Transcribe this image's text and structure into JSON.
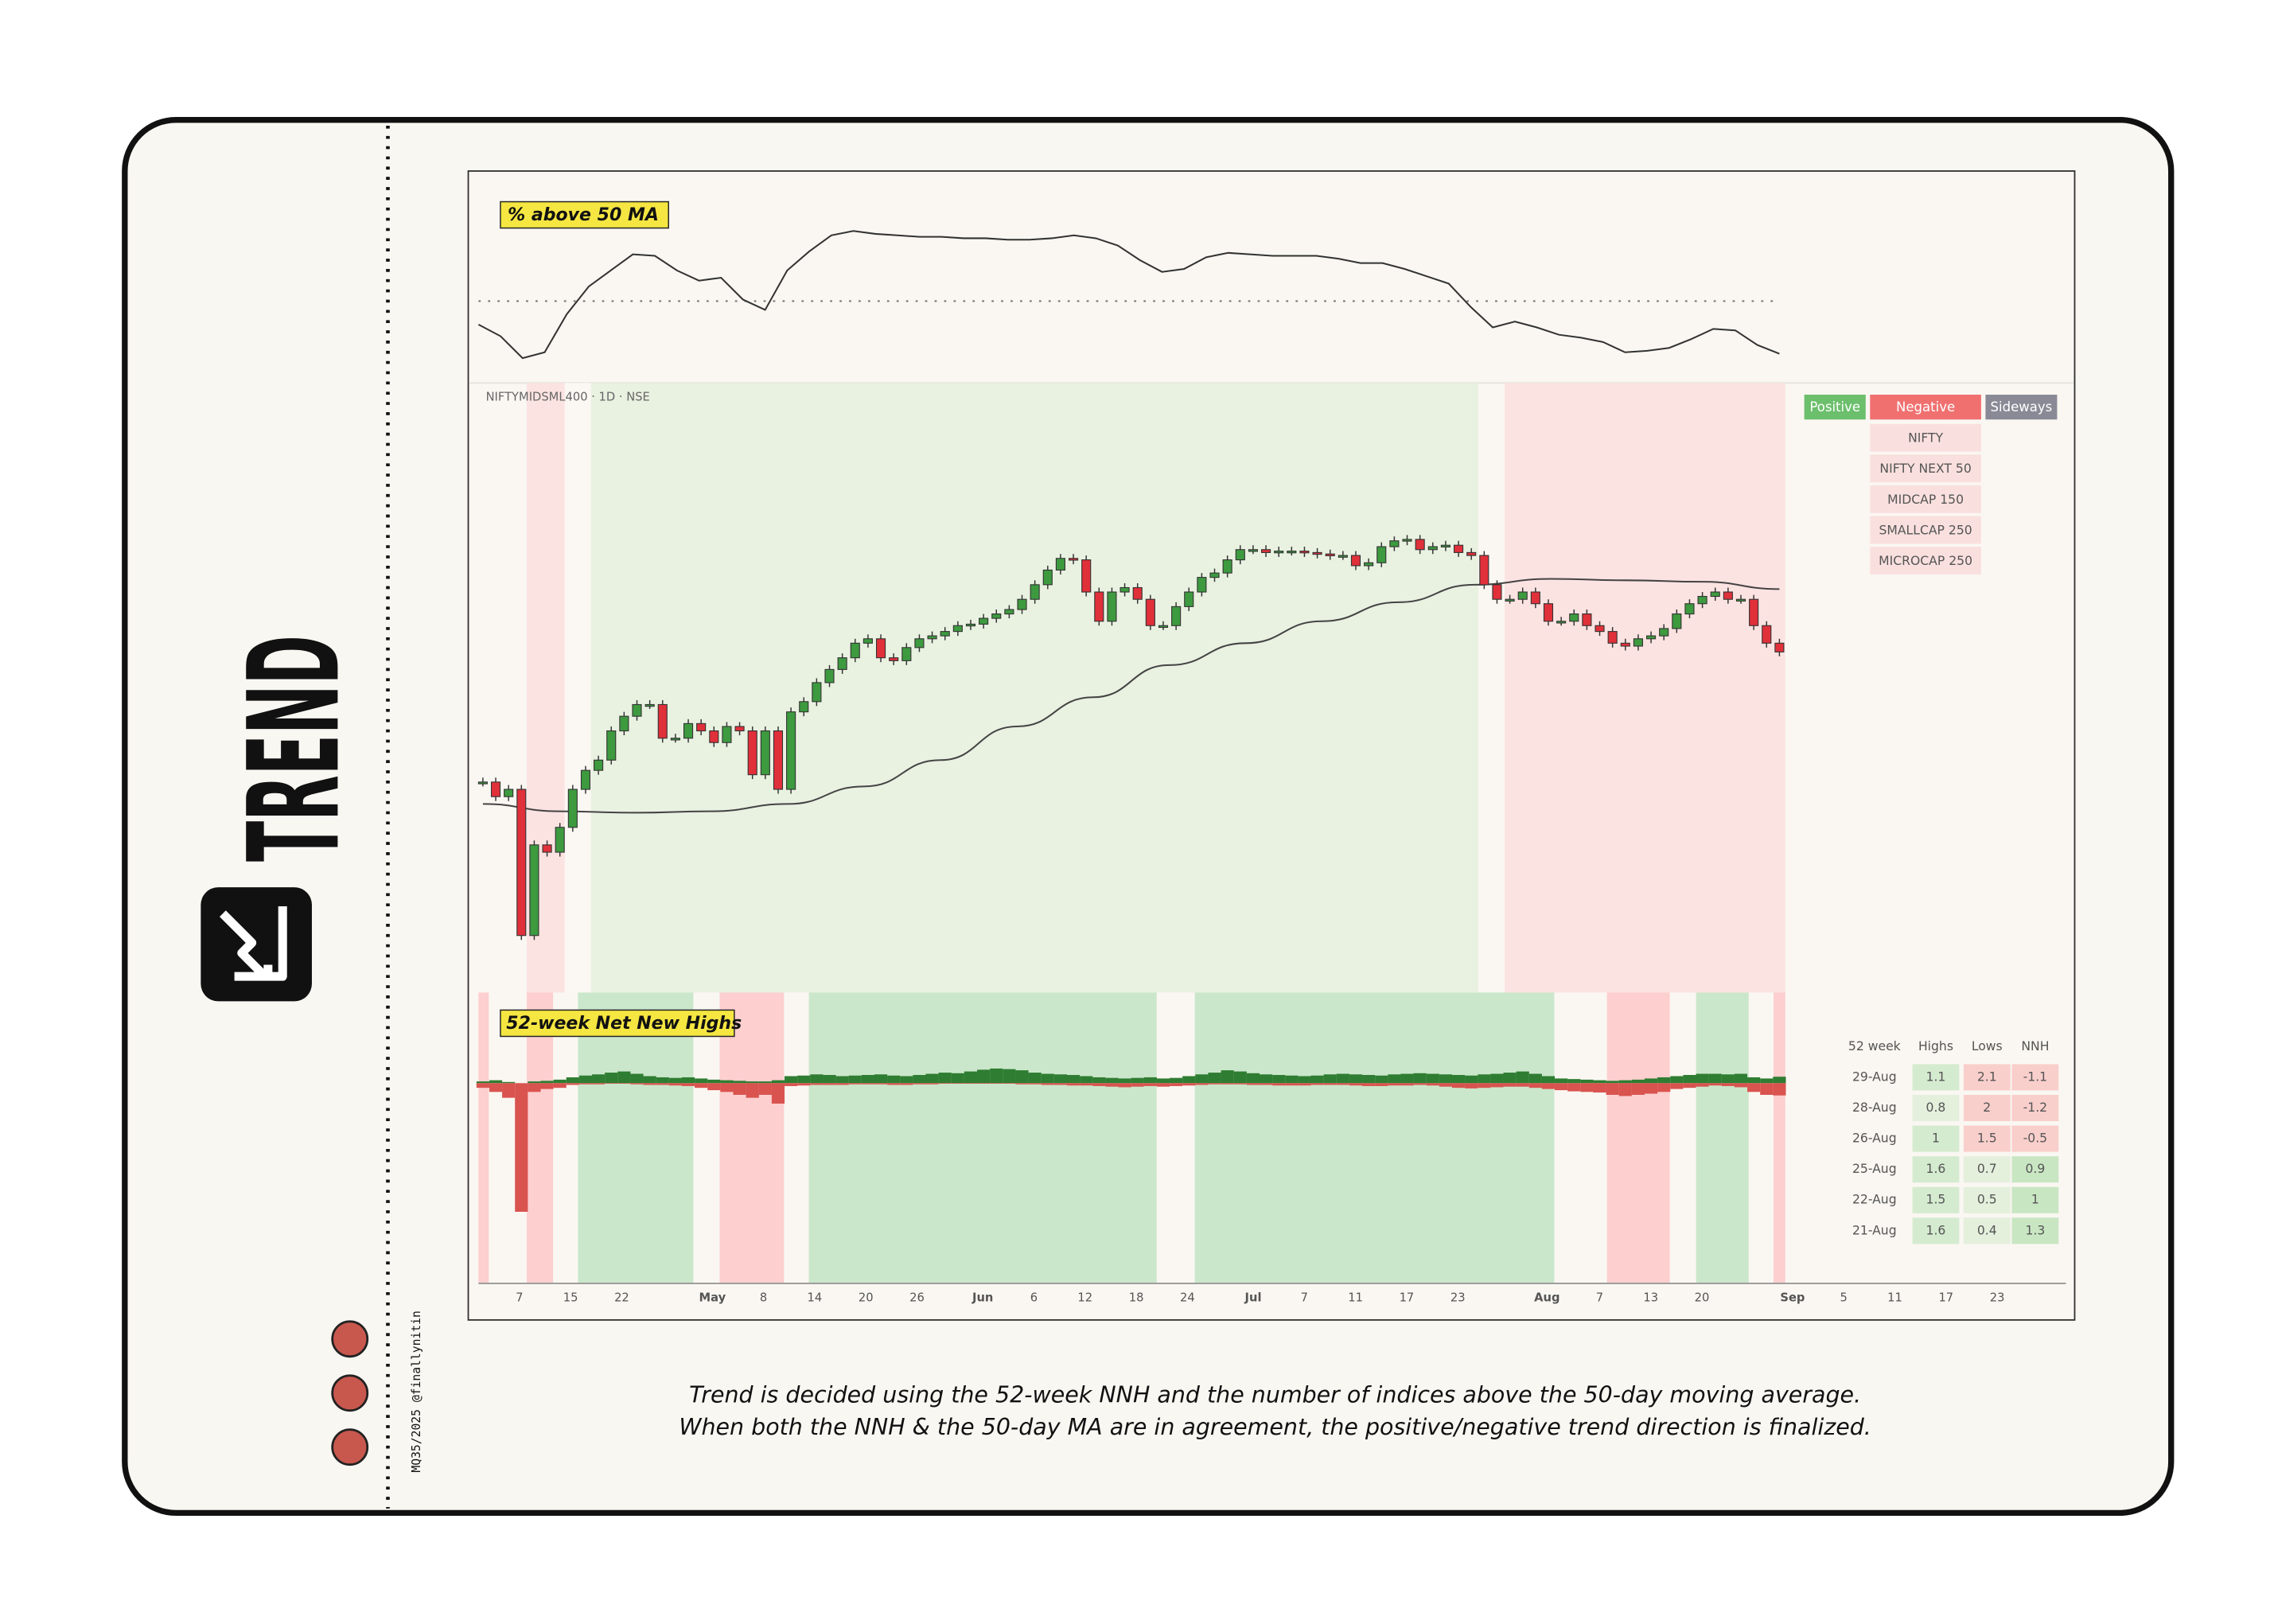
{
  "brand": {
    "title": "TREND",
    "credit": "MQ35/2025 @finallynitin"
  },
  "breadth_panel": {
    "label": "% above 50 MA",
    "threshold": 50,
    "values": [
      34,
      26,
      11,
      15,
      41,
      60,
      71,
      82,
      81,
      71,
      64,
      66,
      51,
      44,
      71,
      84,
      95,
      98,
      96,
      95,
      94,
      94,
      93,
      93,
      92,
      92,
      93,
      95,
      93,
      88,
      78,
      70,
      72,
      80,
      83,
      82,
      81,
      81,
      81,
      79,
      76,
      76,
      72,
      67,
      62,
      46,
      32,
      36,
      32,
      27,
      25,
      22,
      15,
      16,
      18,
      24,
      31,
      30,
      20,
      14
    ]
  },
  "price_panel": {
    "symbol": "NIFTYMIDSML400 · 1D · NSE",
    "closes": [
      165,
      155,
      160,
      60,
      122,
      117,
      134,
      160,
      173,
      180,
      200,
      210,
      218,
      218,
      195,
      195,
      205,
      200,
      192,
      203,
      200,
      170,
      200,
      160,
      213,
      220,
      233,
      242,
      250,
      260,
      263,
      250,
      248,
      257,
      263,
      265,
      268,
      272,
      273,
      277,
      280,
      283,
      290,
      300,
      310,
      318,
      317,
      295,
      275,
      295,
      298,
      290,
      272,
      272,
      285,
      295,
      305,
      308,
      317,
      324,
      324,
      322,
      323,
      323,
      322,
      321,
      320,
      320,
      313,
      315,
      326,
      330,
      331,
      324,
      326,
      327,
      322,
      320,
      300,
      290,
      290,
      295,
      287,
      275,
      275,
      280,
      272,
      268,
      260,
      258,
      263,
      265,
      270,
      280,
      287,
      292,
      295,
      290,
      290,
      272,
      260,
      254
    ],
    "ma50": [
      150,
      145,
      144,
      145,
      150,
      162,
      180,
      203,
      223,
      245,
      260,
      275,
      288,
      300,
      304,
      303,
      302,
      297
    ],
    "legend": [
      "Positive",
      "Negative",
      "Sideways"
    ],
    "indices": [
      "NIFTY",
      "NIFTY NEXT 50",
      "MIDCAP 150",
      "SMALLCAP 250",
      "MICROCAP 250"
    ]
  },
  "nnh_panel": {
    "label": "52-week Net New Highs",
    "highs": [
      0.3,
      0.5,
      0.2,
      0,
      0.3,
      0.4,
      0.6,
      1.0,
      1.3,
      1.5,
      1.8,
      2.0,
      1.6,
      1.2,
      1.0,
      0.9,
      1.0,
      0.8,
      0.6,
      0.5,
      0.4,
      0.3,
      0.3,
      0.5,
      1.2,
      1.3,
      1.5,
      1.4,
      1.2,
      1.3,
      1.4,
      1.5,
      1.3,
      1.2,
      1.4,
      1.6,
      1.8,
      1.7,
      2.0,
      2.3,
      2.5,
      2.4,
      2.2,
      1.8,
      1.6,
      1.5,
      1.4,
      1.2,
      1.0,
      0.9,
      0.8,
      0.9,
      1.0,
      0.8,
      0.9,
      1.2,
      1.5,
      1.8,
      2.2,
      2.0,
      1.7,
      1.5,
      1.4,
      1.3,
      1.2,
      1.3,
      1.5,
      1.6,
      1.5,
      1.4,
      1.3,
      1.5,
      1.6,
      1.7,
      1.6,
      1.5,
      1.4,
      1.3,
      1.5,
      1.6,
      1.8,
      2.0,
      1.6,
      1.2,
      0.8,
      0.7,
      0.6,
      0.5,
      0.4,
      0.5,
      0.6,
      0.8,
      1.0,
      1.2,
      1.4,
      1.6,
      1.6,
      1.5,
      1.6,
      1.0,
      0.8,
      1.1
    ],
    "lows": [
      0.8,
      1.5,
      2.5,
      22,
      1.5,
      1.0,
      0.8,
      0.3,
      0.2,
      0.2,
      0.1,
      0.1,
      0.2,
      0.3,
      0.3,
      0.4,
      0.5,
      0.8,
      1.2,
      1.5,
      2.0,
      2.5,
      2.0,
      3.5,
      0.5,
      0.4,
      0.3,
      0.3,
      0.3,
      0.2,
      0.2,
      0.2,
      0.3,
      0.3,
      0.2,
      0.2,
      0.1,
      0.1,
      0.1,
      0.1,
      0.1,
      0.1,
      0.2,
      0.2,
      0.3,
      0.3,
      0.4,
      0.4,
      0.5,
      0.6,
      0.7,
      0.6,
      0.5,
      0.6,
      0.5,
      0.4,
      0.3,
      0.2,
      0.2,
      0.2,
      0.3,
      0.3,
      0.4,
      0.4,
      0.4,
      0.3,
      0.3,
      0.3,
      0.4,
      0.5,
      0.5,
      0.4,
      0.4,
      0.3,
      0.4,
      0.6,
      0.8,
      0.9,
      0.8,
      0.7,
      0.6,
      0.6,
      0.8,
      1.0,
      1.2,
      1.4,
      1.5,
      1.6,
      2.0,
      2.2,
      2.0,
      1.8,
      1.5,
      1.0,
      0.8,
      0.6,
      0.4,
      0.5,
      0.7,
      1.5,
      2.0,
      2.1
    ],
    "table": {
      "header": [
        "52 week",
        "Highs",
        "Lows",
        "NNH"
      ],
      "rows": [
        [
          "29-Aug",
          1.1,
          2.1,
          -1.1
        ],
        [
          "28-Aug",
          0.8,
          2,
          -1.2
        ],
        [
          "26-Aug",
          1,
          1.5,
          -0.5
        ],
        [
          "25-Aug",
          1.6,
          0.7,
          0.9
        ],
        [
          "22-Aug",
          1.5,
          0.5,
          1
        ],
        [
          "21-Aug",
          1.6,
          0.4,
          1.3
        ]
      ]
    }
  },
  "x_axis": {
    "labels": [
      "7",
      "15",
      "22",
      "May",
      "8",
      "14",
      "20",
      "26",
      "Jun",
      "6",
      "12",
      "18",
      "24",
      "Jul",
      "7",
      "11",
      "17",
      "23",
      "Aug",
      "7",
      "13",
      "20",
      "Sep",
      "5",
      "11",
      "17",
      "23"
    ]
  },
  "caption": [
    "Trend is decided using the 52-week NNH and the number of indices above the 50-day moving average.",
    "When both the NNH & the 50-day MA are in agreement, the positive/negative trend direction is finalized."
  ]
}
